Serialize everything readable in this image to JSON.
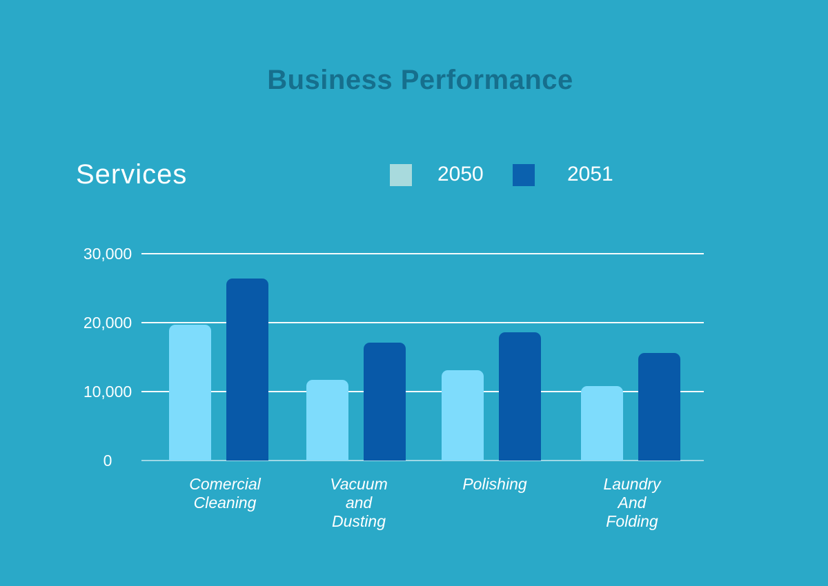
{
  "title": "Business Performance",
  "services_label": "Services",
  "legend": {
    "items": [
      {
        "label": "2050",
        "color": "#A8DADD"
      },
      {
        "label": "2051",
        "color": "#0B61AE"
      }
    ]
  },
  "colors": {
    "background": "#2AA9C8",
    "title_text": "#166F8D",
    "axis_text": "#FFFFFF",
    "gridline": "#FFFFFF",
    "bar_2050": "#7EDCFC",
    "bar_2051": "#0859A8"
  },
  "chart_data": {
    "type": "bar",
    "title": "Business Performance",
    "axis_title": "Services",
    "xlabel": "",
    "ylabel": "",
    "categories": [
      "Comercial Cleaning",
      "Vacuum and Dusting",
      "Polishing",
      "Laundry And Folding"
    ],
    "tick_labels": [
      "Comercial\nCleaning",
      "Vacuum\nand\nDusting",
      "Polishing",
      "Laundry\nAnd\nFolding"
    ],
    "series": [
      {
        "name": "2050",
        "color": "#7EDCFC",
        "values": [
          19700,
          11700,
          13100,
          10800
        ]
      },
      {
        "name": "2051",
        "color": "#0859A8",
        "values": [
          26400,
          17100,
          18600,
          15600
        ]
      }
    ],
    "y_ticks": [
      {
        "label": "30,000",
        "value": 30000
      },
      {
        "label": "20,000",
        "value": 20000
      },
      {
        "label": "10,000",
        "value": 10000
      },
      {
        "label": "0",
        "value": 0
      }
    ],
    "ylim": [
      0,
      30000
    ],
    "grid": "horizontal",
    "legend_position": "top"
  }
}
